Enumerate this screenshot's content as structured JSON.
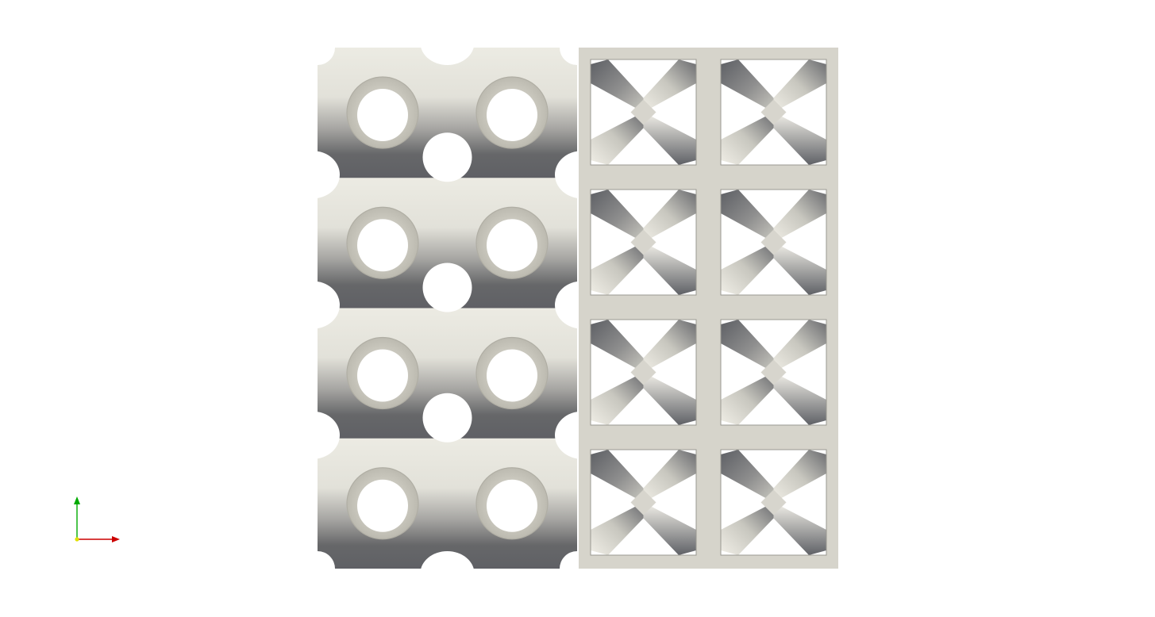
{
  "scene": {
    "background": "#ffffff",
    "colors": {
      "surface_light": "#e9e7df",
      "surface_mid": "#a9a8a4",
      "surface_dark": "#616367",
      "frame": "#d6d4cb",
      "strut_light": "#eeece4",
      "strut_dark": "#5f6166"
    },
    "gyroid_lattice": {
      "rows": 4,
      "cols": 2
    },
    "strut_lattice": {
      "rows": 4,
      "cols": 2
    }
  },
  "axes": {
    "x_color": "#cc0000",
    "y_color": "#00aa00",
    "origin_color": "#e0e000"
  }
}
